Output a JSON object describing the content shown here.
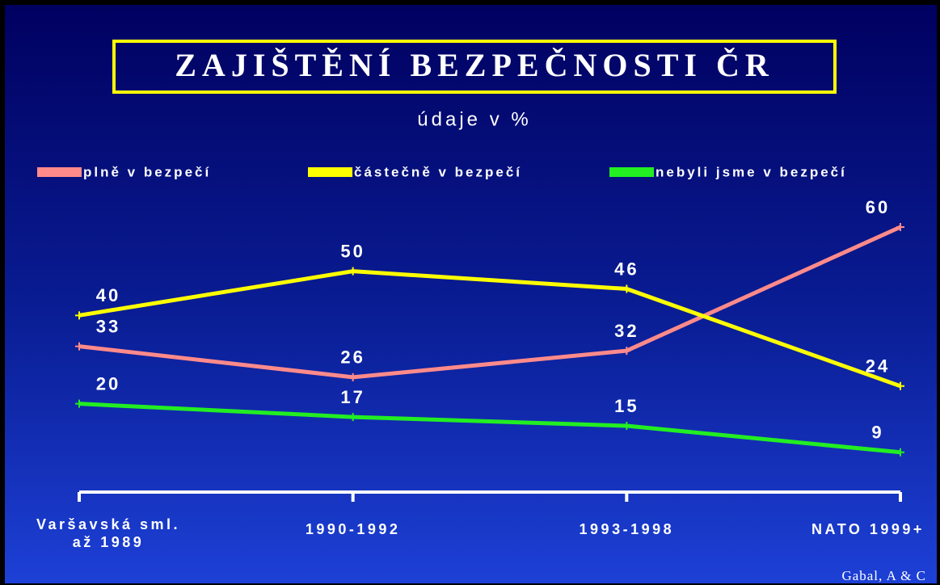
{
  "chart_data": {
    "type": "line",
    "title": "ZAJIŠTĚNÍ BEZPEČNOSTI ČR",
    "subtitle": "údaje v %",
    "categories": [
      "Varšavská sml.\naž 1989",
      "1990-1992",
      "1993-1998",
      "NATO 1999+"
    ],
    "series": [
      {
        "name": "plně v bezpečí",
        "color": "#ff8a8a",
        "values": [
          33,
          26,
          32,
          60
        ]
      },
      {
        "name": "částečně v bezpečí",
        "color": "#ffff00",
        "values": [
          40,
          50,
          46,
          24
        ]
      },
      {
        "name": "nebyli jsme v bezpečí",
        "color": "#22ee22",
        "values": [
          20,
          17,
          15,
          9
        ]
      }
    ],
    "ylim": [
      0,
      60
    ],
    "grid": false,
    "legend": "top",
    "source": "Gabal, A & C"
  }
}
